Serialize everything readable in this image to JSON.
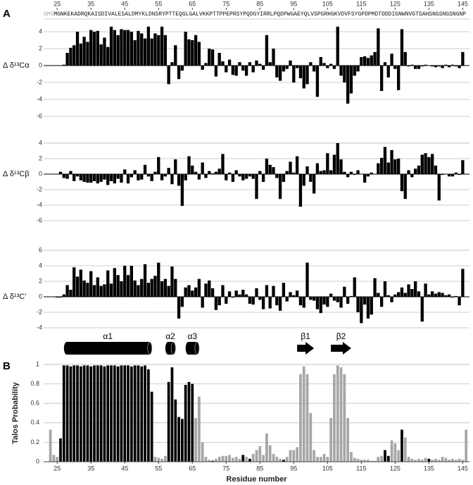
{
  "chart_data": [
    {
      "type": "bar",
      "panel": "A",
      "ylabel": "Δ δ¹³Cα",
      "color": "#000000",
      "sequence_prefix": "GMG",
      "sequence": "MGNKEKADRQKAISDIVALESALDMYKLDNSRYPTTEQGLGALVKKPTTPPEPRSYPQDGYIRRLPQDPWGAEYQLVSPGRHGKVDVFSYGPDPMDTDDDIGNWNVGTSAHSNGSNGSNGNP",
      "xlim": [
        21,
        147
      ],
      "xticks": [
        25,
        35,
        45,
        55,
        65,
        75,
        85,
        95,
        105,
        115,
        125,
        135,
        145
      ],
      "ylim": [
        -6,
        5.5
      ],
      "yticks": [
        -6,
        -4,
        -2,
        0,
        2,
        4
      ],
      "grid": true,
      "x": [
        25,
        26,
        27,
        28,
        29,
        30,
        31,
        32,
        33,
        34,
        35,
        36,
        37,
        38,
        39,
        40,
        41,
        42,
        43,
        44,
        45,
        46,
        47,
        48,
        49,
        50,
        51,
        52,
        53,
        54,
        55,
        56,
        57,
        58,
        59,
        60,
        61,
        62,
        63,
        64,
        65,
        66,
        67,
        68,
        69,
        70,
        71,
        72,
        73,
        74,
        75,
        76,
        77,
        78,
        79,
        80,
        81,
        82,
        83,
        84,
        85,
        86,
        87,
        88,
        89,
        90,
        91,
        92,
        93,
        94,
        95,
        96,
        97,
        98,
        99,
        100,
        101,
        102,
        103,
        104,
        105,
        106,
        107,
        108,
        109,
        110,
        111,
        112,
        113,
        114,
        115,
        116,
        117,
        118,
        119,
        120,
        121,
        122,
        123,
        124,
        125,
        126,
        127,
        128,
        129,
        130,
        131,
        132,
        133,
        134,
        135,
        136,
        137,
        138,
        139,
        140,
        141,
        142,
        143,
        144,
        145,
        146
      ],
      "values": [
        0,
        0,
        0.1,
        1.5,
        2.1,
        2.4,
        4.0,
        2.6,
        3.4,
        2.8,
        4.2,
        4.0,
        4.1,
        2.5,
        3.3,
        2.2,
        4.6,
        4.2,
        3.6,
        4.3,
        4.2,
        4.2,
        4.0,
        3.0,
        4.1,
        3.8,
        3.2,
        4.6,
        3.2,
        3.8,
        3.6,
        4.6,
        3.6,
        -2.2,
        0.4,
        2.4,
        -1.6,
        -0.6,
        4.0,
        3.1,
        3.0,
        3.6,
        2.8,
        -0.5,
        0.3,
        2.0,
        1.9,
        -1.3,
        1.5,
        0.5,
        -0.8,
        0.7,
        -1.1,
        -1.2,
        0.4,
        -0.6,
        -1.2,
        0.4,
        -0.8,
        0.6,
        0.2,
        -0.5,
        3.6,
        0.4,
        2.0,
        -1.4,
        -1.8,
        -0.7,
        -0.4,
        0.6,
        -2.0,
        -0.3,
        -1.5,
        -2.7,
        -2.2,
        0.4,
        -0.7,
        -3.7,
        1.0,
        0.3,
        -0.3,
        0.2,
        -0.4,
        4.6,
        -1.2,
        -2.0,
        -4.5,
        -3.3,
        -1.2,
        -0.7,
        1.0,
        1.1,
        0.9,
        1.2,
        1.6,
        4.4,
        -3.0,
        0.4,
        -1.4,
        1.4,
        -0.4,
        -2.9,
        4.3,
        1.6,
        -0.1,
        0.1,
        -0.4,
        -0.4,
        -0.1,
        0.1,
        0,
        -0.1,
        -0.2,
        -0.1,
        -0.3,
        0.1,
        -0.2,
        0.1,
        -0.1,
        -0.3,
        1.6,
        0
      ]
    },
    {
      "type": "bar",
      "ylabel": "Δ δ¹³Cβ",
      "color": "#000000",
      "xlim": [
        21,
        147
      ],
      "ylim": [
        -6,
        4
      ],
      "yticks": [
        -6,
        -4,
        -2,
        0,
        2,
        4
      ],
      "grid": true,
      "x": [
        25,
        26,
        27,
        28,
        29,
        30,
        31,
        32,
        33,
        34,
        35,
        36,
        37,
        38,
        39,
        40,
        41,
        42,
        43,
        44,
        45,
        46,
        47,
        48,
        49,
        50,
        51,
        52,
        53,
        54,
        55,
        56,
        57,
        58,
        59,
        60,
        61,
        62,
        63,
        64,
        65,
        66,
        67,
        68,
        69,
        70,
        71,
        72,
        73,
        74,
        75,
        76,
        77,
        78,
        79,
        80,
        81,
        82,
        83,
        84,
        85,
        86,
        87,
        88,
        89,
        90,
        91,
        92,
        93,
        94,
        95,
        96,
        97,
        98,
        99,
        100,
        101,
        102,
        103,
        104,
        105,
        106,
        107,
        108,
        109,
        110,
        111,
        112,
        113,
        114,
        115,
        116,
        117,
        118,
        119,
        120,
        121,
        122,
        123,
        124,
        125,
        126,
        127,
        128,
        129,
        130,
        131,
        132,
        133,
        134,
        135,
        136,
        137,
        138,
        139,
        140,
        141,
        142,
        143,
        144,
        145,
        146
      ],
      "values": [
        0,
        0.3,
        -0.5,
        -0.6,
        0.4,
        -0.9,
        -0.3,
        -0.8,
        -1.0,
        -1.1,
        -1.1,
        -0.9,
        -1.2,
        -1.0,
        -0.7,
        -1.4,
        -0.9,
        -1.2,
        -0.6,
        -1.1,
        0.6,
        -1.2,
        -0.4,
        0.5,
        -0.8,
        -0.7,
        1.2,
        -0.3,
        -0.9,
        0.3,
        2.2,
        -0.8,
        -0.3,
        0.8,
        -1.3,
        1.9,
        -1.5,
        -4.1,
        -0.8,
        2.3,
        1.1,
        0.3,
        -0.7,
        1.5,
        -0.5,
        0.4,
        0.1,
        0.3,
        0.7,
        2.6,
        -0.8,
        0.2,
        -1.0,
        0.5,
        -0.3,
        -0.8,
        -0.6,
        -0.3,
        -0.6,
        -3.2,
        0.4,
        -1.0,
        2.0,
        1.2,
        0.9,
        -0.5,
        -3.2,
        -1.0,
        0.4,
        1.6,
        0.2,
        2.3,
        -4.2,
        -1.5,
        1.0,
        -1.0,
        -2.5,
        1.4,
        0.4,
        0.5,
        2.7,
        0.5,
        2.5,
        4.0,
        1.9,
        0.3,
        -0.4,
        0.3,
        -0.1,
        0.5,
        0,
        -1.1,
        -0.3,
        0.2,
        0,
        1.4,
        2.1,
        3.5,
        1.5,
        3.1,
        1.9,
        2.0,
        -2.2,
        -3.2,
        0.5,
        -0.4,
        0.7,
        1.1,
        2.5,
        2.7,
        2.2,
        2.6,
        1.1,
        -3.4,
        -0.1,
        0,
        -0.3,
        -0.3,
        0.2,
        -0.1,
        1.8,
        0
      ]
    },
    {
      "type": "bar",
      "ylabel": "Δ δ¹³C'",
      "color": "#000000",
      "xlim": [
        21,
        147
      ],
      "ylim": [
        -4,
        6
      ],
      "yticks": [
        -4,
        -2,
        0,
        2,
        4,
        6
      ],
      "grid": true,
      "x": [
        25,
        26,
        27,
        28,
        29,
        30,
        31,
        32,
        33,
        34,
        35,
        36,
        37,
        38,
        39,
        40,
        41,
        42,
        43,
        44,
        45,
        46,
        47,
        48,
        49,
        50,
        51,
        52,
        53,
        54,
        55,
        56,
        57,
        58,
        59,
        60,
        61,
        62,
        63,
        64,
        65,
        66,
        67,
        68,
        69,
        70,
        71,
        72,
        73,
        74,
        75,
        76,
        77,
        78,
        79,
        80,
        81,
        82,
        83,
        84,
        85,
        86,
        87,
        88,
        89,
        90,
        91,
        92,
        93,
        94,
        95,
        96,
        97,
        98,
        99,
        100,
        101,
        102,
        103,
        104,
        105,
        106,
        107,
        108,
        109,
        110,
        111,
        112,
        113,
        114,
        115,
        116,
        117,
        118,
        119,
        120,
        121,
        122,
        123,
        124,
        125,
        126,
        127,
        128,
        129,
        130,
        131,
        132,
        133,
        134,
        135,
        136,
        137,
        138,
        139,
        140,
        141,
        142,
        143,
        144,
        145,
        146
      ],
      "values": [
        -0.1,
        -0.1,
        0.3,
        1.5,
        0.9,
        3.8,
        2.6,
        3.5,
        2.1,
        1.8,
        3.3,
        1.5,
        2.5,
        1.4,
        1.6,
        3.4,
        1.7,
        3.7,
        2.8,
        2.0,
        4.0,
        2.8,
        4.0,
        2.1,
        1.5,
        2.3,
        4.2,
        1.8,
        2.3,
        2.7,
        4.4,
        2.0,
        2.3,
        1.4,
        3.9,
        2.3,
        -2.8,
        -1.3,
        1.2,
        1.5,
        0.8,
        1.2,
        2.3,
        -1.4,
        1.7,
        2.1,
        1.1,
        -1.7,
        -1.1,
        1.5,
        -0.9,
        0.7,
        -0.1,
        0.8,
        0.3,
        0.9,
        0.3,
        -0.9,
        -1.0,
        1.1,
        -0.4,
        -1.6,
        1.5,
        -1.5,
        1.4,
        -1.1,
        -1.8,
        1.8,
        -0.6,
        0.6,
        0.2,
        0.8,
        -1.1,
        -1.4,
        4.4,
        -0.4,
        -0.5,
        -1.6,
        -2.1,
        -1.0,
        -1.3,
        0.4,
        -0.5,
        -0.7,
        -1.4,
        1.3,
        -0.9,
        0.1,
        2.5,
        -2.0,
        -3.4,
        -1.0,
        -2.8,
        -2.3,
        2.4,
        0.5,
        -1.3,
        2.0,
        0.2,
        -0.7,
        0.3,
        0.6,
        1.2,
        0.5,
        1.6,
        1.0,
        2.0,
        0.7,
        -3.2,
        1.7,
        0.3,
        0.7,
        0.4,
        0.6,
        0.5,
        0.2,
        0.3,
        -0.1,
        0.1,
        -1.1,
        3.6,
        0
      ]
    },
    {
      "type": "bar",
      "panel": "B",
      "ylabel": "Talos Probability",
      "xlabel": "Residue number",
      "xlim": [
        21,
        147
      ],
      "xticks": [
        25,
        35,
        45,
        55,
        65,
        75,
        85,
        95,
        105,
        115,
        125,
        135,
        145
      ],
      "ylim": [
        0,
        1
      ],
      "yticks": [
        0,
        0.2,
        0.4,
        0.6,
        0.8,
        1
      ],
      "grid": true,
      "secondary_structure": [
        {
          "label": "α1",
          "type": "helix",
          "start": 27,
          "end": 53
        },
        {
          "label": "α2",
          "type": "helix",
          "start": 57,
          "end": 60
        },
        {
          "label": "α3",
          "type": "helix",
          "start": 63,
          "end": 67
        },
        {
          "label": "β1",
          "type": "strand",
          "start": 96,
          "end": 101
        },
        {
          "label": "β2",
          "type": "strand",
          "start": 106,
          "end": 112
        }
      ],
      "x": [
        23,
        24,
        25,
        26,
        27,
        28,
        29,
        30,
        31,
        32,
        33,
        34,
        35,
        36,
        37,
        38,
        39,
        40,
        41,
        42,
        43,
        44,
        45,
        46,
        47,
        48,
        49,
        50,
        51,
        52,
        53,
        54,
        55,
        56,
        57,
        58,
        59,
        60,
        61,
        62,
        63,
        64,
        65,
        66,
        67,
        68,
        69,
        70,
        71,
        72,
        73,
        74,
        75,
        76,
        77,
        78,
        79,
        80,
        81,
        82,
        83,
        84,
        85,
        86,
        87,
        88,
        89,
        90,
        91,
        92,
        93,
        94,
        95,
        96,
        97,
        98,
        99,
        100,
        101,
        102,
        103,
        104,
        105,
        106,
        107,
        108,
        109,
        110,
        111,
        112,
        113,
        114,
        115,
        116,
        117,
        118,
        119,
        120,
        121,
        122,
        123,
        124,
        125,
        126,
        127,
        128,
        129,
        130,
        131,
        132,
        133,
        134,
        135,
        136,
        137,
        138,
        139,
        140,
        141,
        142,
        143,
        144,
        145,
        146
      ],
      "values": [
        0.33,
        0.07,
        0.05,
        0.24,
        0.99,
        0.99,
        0.98,
        0.99,
        0.99,
        0.98,
        0.99,
        0.99,
        0.98,
        0.99,
        0.99,
        0.99,
        0.98,
        0.99,
        0.99,
        0.99,
        0.98,
        0.99,
        0.99,
        0.99,
        0.98,
        0.99,
        0.99,
        0.98,
        0.99,
        0.95,
        0.72,
        0.05,
        0.04,
        0.03,
        0.06,
        0.82,
        0.97,
        0.64,
        0.46,
        0.44,
        0.79,
        0.82,
        0.8,
        0.45,
        0.67,
        0.2,
        0.05,
        0.02,
        0.01,
        0.03,
        0.05,
        0.06,
        0.06,
        0.07,
        0.04,
        0.05,
        0.03,
        0.07,
        0.05,
        0.03,
        0.08,
        0.12,
        0.16,
        0.07,
        0.29,
        0.17,
        0.08,
        0.05,
        0.03,
        0.02,
        0.05,
        0.12,
        0.12,
        0.15,
        0.9,
        0.98,
        0.9,
        0.5,
        0.12,
        0.05,
        0.05,
        0.08,
        0.05,
        0.45,
        0.9,
        0.99,
        0.97,
        0.9,
        0.45,
        0.1,
        0.04,
        0.03,
        0.02,
        0.02,
        0.02,
        0.01,
        0.01,
        0.05,
        0.06,
        0.12,
        0.06,
        0.22,
        0.19,
        0.12,
        0.33,
        0.25,
        0.05,
        0.03,
        0.02,
        0.03,
        0.02,
        0.04,
        0.03,
        0.02,
        0.03,
        0.02,
        0.05,
        0.04,
        0.02,
        0.03,
        0.02,
        0.03,
        0.02,
        0.33
      ],
      "colors": [
        "#a6a6a6",
        "#a6a6a6",
        "#a6a6a6",
        "#000000",
        "#000000",
        "#000000",
        "#000000",
        "#000000",
        "#000000",
        "#000000",
        "#000000",
        "#000000",
        "#000000",
        "#000000",
        "#000000",
        "#000000",
        "#000000",
        "#000000",
        "#000000",
        "#000000",
        "#000000",
        "#000000",
        "#000000",
        "#000000",
        "#000000",
        "#000000",
        "#000000",
        "#000000",
        "#000000",
        "#000000",
        "#000000",
        "#a6a6a6",
        "#a6a6a6",
        "#a6a6a6",
        "#a6a6a6",
        "#000000",
        "#000000",
        "#000000",
        "#000000",
        "#000000",
        "#000000",
        "#000000",
        "#000000",
        "#a6a6a6",
        "#a6a6a6",
        "#a6a6a6",
        "#a6a6a6",
        "#a6a6a6",
        "#000000",
        "#a6a6a6",
        "#a6a6a6",
        "#a6a6a6",
        "#a6a6a6",
        "#a6a6a6",
        "#a6a6a6",
        "#a6a6a6",
        "#a6a6a6",
        "#000000",
        "#a6a6a6",
        "#000000",
        "#a6a6a6",
        "#a6a6a6",
        "#a6a6a6",
        "#a6a6a6",
        "#a6a6a6",
        "#a6a6a6",
        "#a6a6a6",
        "#a6a6a6",
        "#a6a6a6",
        "#000000",
        "#a6a6a6",
        "#a6a6a6",
        "#a6a6a6",
        "#a6a6a6",
        "#a6a6a6",
        "#a6a6a6",
        "#a6a6a6",
        "#a6a6a6",
        "#a6a6a6",
        "#a6a6a6",
        "#a6a6a6",
        "#a6a6a6",
        "#a6a6a6",
        "#a6a6a6",
        "#a6a6a6",
        "#a6a6a6",
        "#a6a6a6",
        "#a6a6a6",
        "#a6a6a6",
        "#a6a6a6",
        "#a6a6a6",
        "#a6a6a6",
        "#a6a6a6",
        "#a6a6a6",
        "#a6a6a6",
        "#a6a6a6",
        "#a6a6a6",
        "#a6a6a6",
        "#a6a6a6",
        "#000000",
        "#000000",
        "#a6a6a6",
        "#a6a6a6",
        "#a6a6a6",
        "#000000",
        "#a6a6a6",
        "#a6a6a6",
        "#a6a6a6",
        "#a6a6a6",
        "#a6a6a6",
        "#a6a6a6",
        "#a6a6a6",
        "#000000",
        "#a6a6a6",
        "#a6a6a6",
        "#a6a6a6",
        "#a6a6a6",
        "#a6a6a6",
        "#a6a6a6",
        "#a6a6a6",
        "#a6a6a6",
        "#a6a6a6",
        "#a6a6a6",
        "#a6a6a6"
      ]
    }
  ]
}
